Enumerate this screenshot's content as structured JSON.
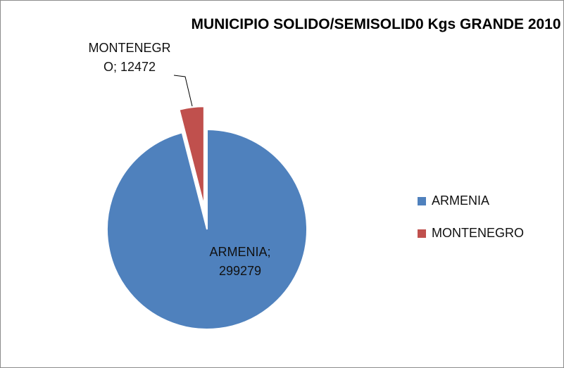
{
  "chart_data": {
    "type": "pie",
    "title": "MUNICIPIO SOLIDO/SEMISOLID0 Kgs GRANDE 2010",
    "categories": [
      "ARMENIA",
      "MONTENEGRO"
    ],
    "values": [
      299279,
      12472
    ],
    "value_labels": [
      "ARMENIA; 299279",
      "MONTENEGRO; 12472"
    ],
    "colors": [
      "#4f81bd",
      "#c0504d"
    ],
    "legend": "right"
  }
}
